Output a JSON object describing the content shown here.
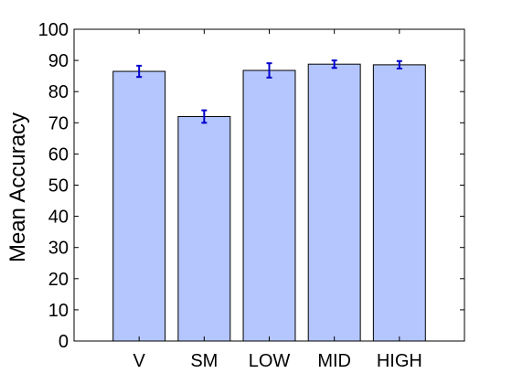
{
  "chart_data": {
    "type": "bar",
    "title": "",
    "xlabel": "",
    "ylabel": "Mean Accuracy",
    "ylim": [
      0,
      100
    ],
    "yticks": [
      0,
      10,
      20,
      30,
      40,
      50,
      60,
      70,
      80,
      90,
      100
    ],
    "categories": [
      "V",
      "SM",
      "LOW",
      "MID",
      "HIGH"
    ],
    "values": [
      86.5,
      72,
      86.8,
      88.8,
      88.6
    ],
    "errors": [
      1.8,
      2.0,
      2.3,
      1.2,
      1.2
    ],
    "grid": false,
    "legend": null
  },
  "colors": {
    "bar_fill": "#b4c6fd",
    "error_bar": "#0000cc",
    "axis": "#000000"
  }
}
